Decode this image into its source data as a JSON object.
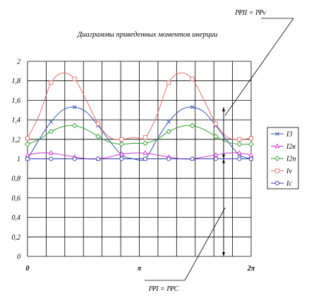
{
  "chart_data": {
    "type": "line",
    "title": "Диаграммы приведенных моментов инерции",
    "xlim": [
      0,
      6.2832
    ],
    "ylim": [
      0,
      2
    ],
    "grid": true,
    "y_ticks": [
      "0",
      "0,2",
      "0,4",
      "0,6",
      "0,8",
      "1",
      "1,2",
      "1,4",
      "1,6",
      "1,8",
      "2"
    ],
    "x_ticks": [
      {
        "label": "0",
        "value": 0
      },
      {
        "label": "π",
        "value": 3.1416
      },
      {
        "label": "2π",
        "value": 6.2832
      }
    ],
    "x": [
      0,
      0.3307,
      0.6614,
      0.9921,
      1.3228,
      1.6535,
      1.9842,
      2.3149,
      2.6456,
      2.9763,
      3.307,
      3.6377,
      3.9684,
      4.2991,
      4.6298,
      4.9605,
      5.2912,
      5.6219,
      5.9526,
      6.2832
    ],
    "series": [
      {
        "name": "I3",
        "color": "#3355aa",
        "marker": "x",
        "values": [
          1.0,
          1.2,
          1.38,
          1.5,
          1.53,
          1.48,
          1.34,
          1.18,
          1.04,
          1.0,
          1.0,
          1.2,
          1.38,
          1.5,
          1.53,
          1.48,
          1.34,
          1.18,
          1.04,
          1.0
        ]
      },
      {
        "name": "I2в",
        "color": "#cc33cc",
        "marker": "triangle",
        "values": [
          1.04,
          1.06,
          1.06,
          1.04,
          1.02,
          1.0,
          1.0,
          1.02,
          1.05,
          1.06,
          1.06,
          1.04,
          1.02,
          1.0,
          1.0,
          1.02,
          1.04,
          1.06,
          1.06,
          1.04
        ]
      },
      {
        "name": "I2п",
        "color": "#339933",
        "marker": "diamond",
        "values": [
          1.15,
          1.2,
          1.28,
          1.33,
          1.34,
          1.3,
          1.23,
          1.17,
          1.15,
          1.16,
          1.16,
          1.2,
          1.28,
          1.33,
          1.34,
          1.3,
          1.23,
          1.17,
          1.15,
          1.15
        ]
      },
      {
        "name": "Iv",
        "color": "#e07070",
        "marker": "square",
        "values": [
          1.21,
          1.45,
          1.78,
          1.88,
          1.82,
          1.6,
          1.36,
          1.22,
          1.2,
          1.22,
          1.22,
          1.45,
          1.78,
          1.88,
          1.82,
          1.6,
          1.36,
          1.22,
          1.2,
          1.21
        ]
      },
      {
        "name": "Ic",
        "color": "#3333aa",
        "marker": "circle",
        "values": [
          1.0,
          1.0,
          1.0,
          1.0,
          1.0,
          1.0,
          1.0,
          1.0,
          1.0,
          1.0,
          1.0,
          1.0,
          1.0,
          1.0,
          1.0,
          1.0,
          1.0,
          1.0,
          1.0,
          1.0
        ]
      }
    ],
    "annotations": {
      "top": "IΨII = IΨv",
      "bottom": "IΨI = IΨC"
    }
  }
}
